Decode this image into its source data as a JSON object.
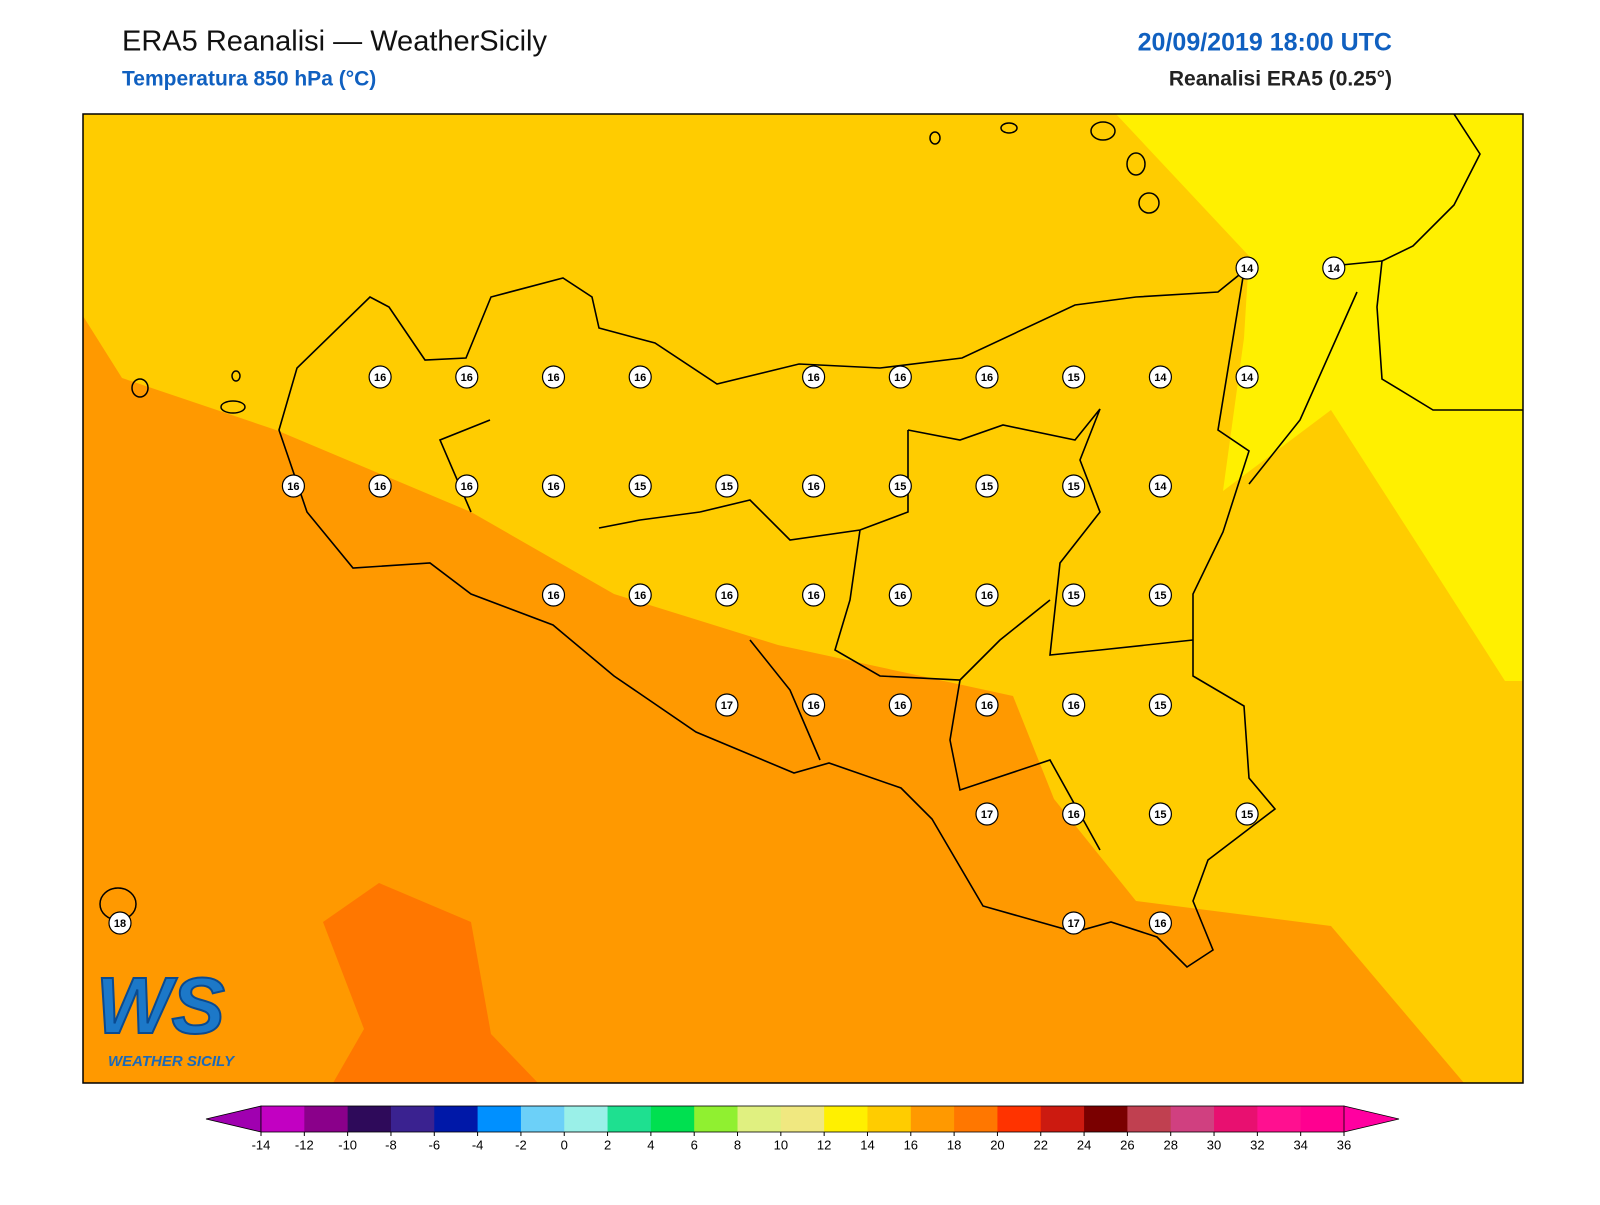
{
  "header": {
    "title": "ERA5 Reanalisi — WeatherSicily",
    "subtitle": "Temperatura 850 hPa (°C)",
    "datetime": "20/09/2019 18:00 UTC",
    "source": "Reanalisi ERA5 (0.25°)"
  },
  "field": {
    "rows": [
      [
        null,
        null,
        null,
        null,
        null,
        null,
        null,
        null,
        null,
        null,
        null,
        null,
        null,
        14,
        14
      ],
      [
        null,
        null,
        null,
        16,
        16,
        16,
        16,
        null,
        16,
        16,
        16,
        15,
        14,
        14,
        null
      ],
      [
        null,
        null,
        16,
        16,
        16,
        16,
        15,
        15,
        16,
        15,
        15,
        15,
        14,
        null,
        null
      ],
      [
        null,
        null,
        null,
        null,
        null,
        16,
        16,
        16,
        16,
        16,
        16,
        15,
        15,
        null,
        null
      ],
      [
        null,
        null,
        null,
        null,
        null,
        null,
        null,
        17,
        16,
        16,
        16,
        16,
        15,
        null,
        null
      ],
      [
        null,
        null,
        null,
        null,
        null,
        null,
        null,
        null,
        null,
        null,
        17,
        16,
        15,
        15,
        null
      ],
      [
        18,
        null,
        null,
        null,
        null,
        null,
        null,
        null,
        null,
        null,
        null,
        17,
        16,
        null,
        null
      ]
    ]
  },
  "colorbar": {
    "ticks": [
      -14,
      -12,
      -10,
      -8,
      -6,
      -4,
      -2,
      0,
      2,
      4,
      6,
      8,
      10,
      12,
      14,
      16,
      18,
      20,
      22,
      24,
      26,
      28,
      30,
      32,
      34,
      36
    ],
    "colors": [
      "#c200c2",
      "#8a008a",
      "#2e0a5a",
      "#3a2290",
      "#0018a8",
      "#0090ff",
      "#6cd0f8",
      "#9af0e8",
      "#1ee090",
      "#00e050",
      "#90f030",
      "#e0f080",
      "#f0e880",
      "#fff000",
      "#ffcc00",
      "#ff9900",
      "#ff7700",
      "#ff3300",
      "#cc1a10",
      "#7a0000",
      "#c04050",
      "#d04080",
      "#e81070",
      "#ff1090",
      "#ff0090"
    ],
    "under": "#a000b0",
    "over": "#ff00a0"
  },
  "logo": {
    "mark": "WS",
    "caption": "WEATHER SICILY"
  }
}
